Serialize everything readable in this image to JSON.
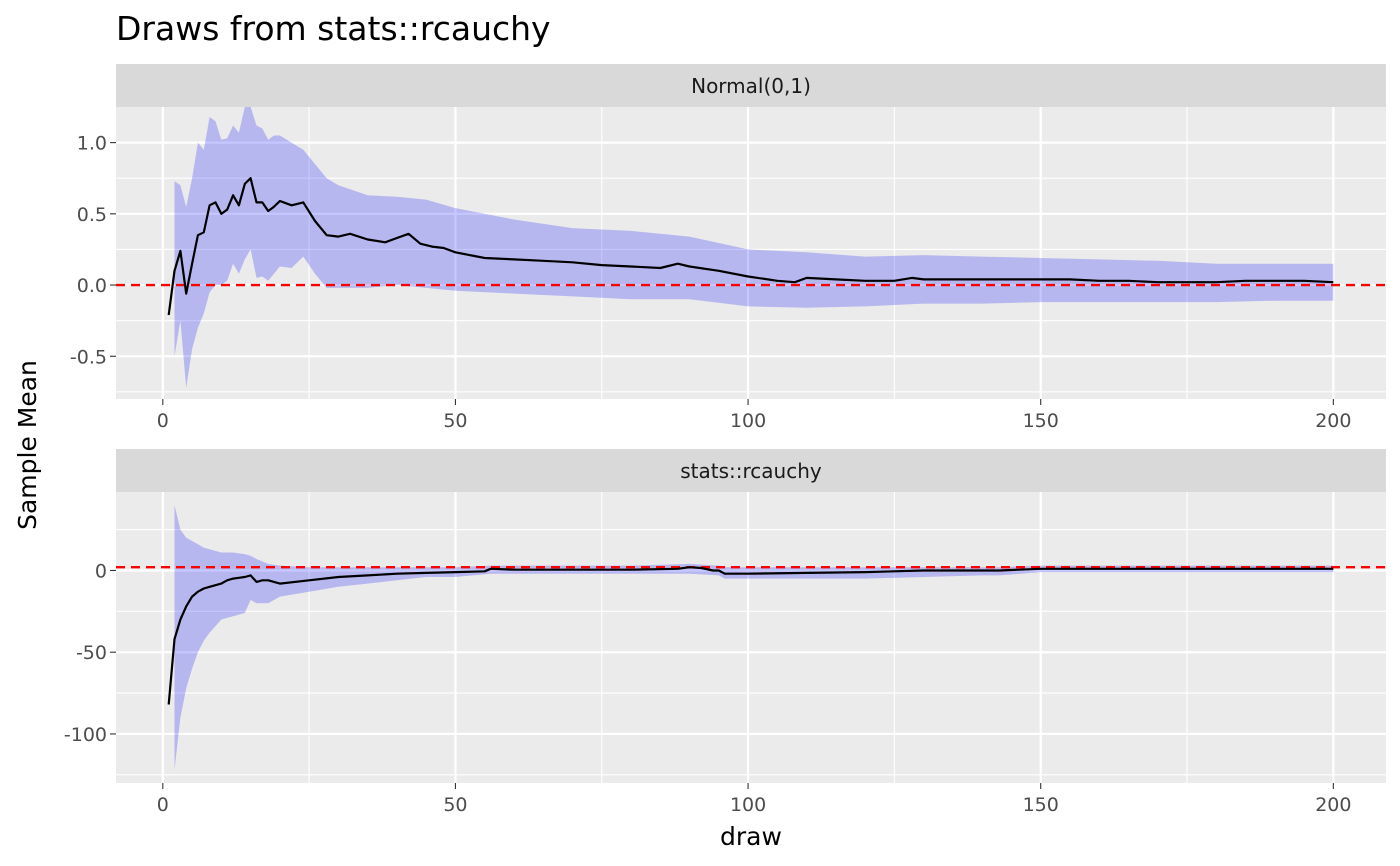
{
  "chart_data": {
    "type": "line",
    "title": "Draws from stats::rcauchy",
    "xlabel": "draw",
    "ylabel": "Sample Mean",
    "grid": true,
    "colors": {
      "ribbon": "#0000ff",
      "ribbon_opacity": 0.22,
      "line": "#000000",
      "reference_line": "#ff0000",
      "panel_background": "#ebebeb",
      "strip_background": "#d9d9d9"
    },
    "panels": [
      {
        "strip_label": "Normal(0,1)",
        "xlim": [
          -8,
          209
        ],
        "ylim": [
          -0.8,
          1.25
        ],
        "x_ticks": [
          0,
          50,
          100,
          150,
          200
        ],
        "y_ticks": [
          -0.5,
          0.0,
          0.5,
          1.0
        ],
        "y_tick_labels": [
          "-0.5",
          "0.0",
          "0.5",
          "1.0"
        ],
        "reference_y": 0.0,
        "series": [
          {
            "type": "line",
            "x": [
              1,
              2,
              3,
              4,
              5,
              6,
              7,
              8,
              9,
              10,
              11,
              12,
              13,
              14,
              15,
              16,
              17,
              18,
              19,
              20,
              22,
              24,
              26,
              28,
              30,
              32,
              35,
              38,
              40,
              42,
              44,
              46,
              48,
              50,
              55,
              60,
              65,
              70,
              75,
              80,
              85,
              88,
              90,
              95,
              100,
              105,
              108,
              110,
              115,
              120,
              125,
              128,
              130,
              135,
              140,
              145,
              150,
              155,
              160,
              165,
              170,
              175,
              180,
              185,
              190,
              195,
              200
            ],
            "y": [
              -0.21,
              0.1,
              0.24,
              -0.06,
              0.15,
              0.35,
              0.37,
              0.56,
              0.58,
              0.5,
              0.53,
              0.63,
              0.56,
              0.71,
              0.75,
              0.58,
              0.58,
              0.52,
              0.55,
              0.59,
              0.56,
              0.58,
              0.45,
              0.35,
              0.34,
              0.36,
              0.32,
              0.3,
              0.33,
              0.36,
              0.29,
              0.27,
              0.26,
              0.23,
              0.19,
              0.18,
              0.17,
              0.16,
              0.14,
              0.13,
              0.12,
              0.15,
              0.13,
              0.1,
              0.06,
              0.03,
              0.02,
              0.05,
              0.04,
              0.03,
              0.03,
              0.05,
              0.04,
              0.04,
              0.04,
              0.04,
              0.04,
              0.04,
              0.03,
              0.03,
              0.02,
              0.02,
              0.02,
              0.03,
              0.03,
              0.03,
              0.02
            ]
          },
          {
            "type": "ribbon",
            "x": [
              1,
              2,
              3,
              4,
              5,
              6,
              7,
              8,
              9,
              10,
              11,
              12,
              13,
              14,
              15,
              16,
              17,
              18,
              19,
              20,
              22,
              24,
              26,
              28,
              30,
              35,
              40,
              45,
              50,
              60,
              70,
              80,
              90,
              100,
              110,
              120,
              130,
              140,
              150,
              160,
              170,
              180,
              190,
              200
            ],
            "upper": [
              null,
              0.73,
              0.7,
              0.55,
              0.75,
              1.0,
              0.95,
              1.18,
              1.15,
              1.02,
              1.03,
              1.12,
              1.07,
              1.25,
              1.25,
              1.12,
              1.1,
              1.02,
              1.05,
              1.05,
              1.0,
              0.95,
              0.85,
              0.75,
              0.7,
              0.63,
              0.62,
              0.6,
              0.54,
              0.46,
              0.4,
              0.38,
              0.34,
              0.25,
              0.23,
              0.2,
              0.21,
              0.2,
              0.19,
              0.18,
              0.17,
              0.15,
              0.15,
              0.15
            ],
            "lower": [
              null,
              -0.5,
              -0.25,
              -0.72,
              -0.45,
              -0.3,
              -0.2,
              -0.05,
              0.0,
              0.0,
              0.03,
              0.15,
              0.08,
              0.18,
              0.25,
              0.05,
              0.06,
              0.03,
              0.08,
              0.13,
              0.12,
              0.2,
              0.08,
              -0.02,
              -0.02,
              -0.02,
              0.0,
              -0.02,
              -0.04,
              -0.06,
              -0.08,
              -0.1,
              -0.1,
              -0.15,
              -0.16,
              -0.15,
              -0.13,
              -0.13,
              -0.12,
              -0.12,
              -0.12,
              -0.12,
              -0.11,
              -0.11
            ]
          }
        ]
      },
      {
        "strip_label": "stats::rcauchy",
        "xlim": [
          -8,
          209
        ],
        "ylim": [
          -130,
          48
        ],
        "x_ticks": [
          0,
          50,
          100,
          150,
          200
        ],
        "y_ticks": [
          -100,
          -50,
          0
        ],
        "y_tick_labels": [
          "-100",
          "-50",
          "0"
        ],
        "reference_y": 2,
        "series": [
          {
            "type": "line",
            "x": [
              1,
              2,
              3,
              4,
              5,
              6,
              7,
              8,
              9,
              10,
              11,
              12,
              13,
              14,
              15,
              16,
              17,
              18,
              20,
              25,
              30,
              35,
              40,
              45,
              50,
              55,
              56,
              60,
              70,
              80,
              88,
              90,
              92,
              94,
              95,
              96,
              100,
              110,
              120,
              130,
              140,
              143,
              150,
              160,
              170,
              180,
              190,
              200
            ],
            "y": [
              -82,
              -42,
              -30,
              -22,
              -16,
              -13,
              -11,
              -10,
              -9,
              -8,
              -6,
              -5,
              -4.5,
              -4,
              -3,
              -7,
              -6,
              -6,
              -8,
              -6,
              -4,
              -3,
              -2,
              -1.5,
              -1,
              -0.5,
              1,
              0.5,
              0.5,
              0.5,
              1,
              2,
              1.5,
              0,
              0,
              -2,
              -2,
              -1.5,
              -1,
              0,
              0,
              0,
              1,
              1,
              1,
              1,
              1,
              1
            ]
          },
          {
            "type": "ribbon",
            "x": [
              1,
              2,
              3,
              4,
              5,
              6,
              7,
              8,
              9,
              10,
              12,
              14,
              15,
              16,
              18,
              20,
              25,
              30,
              35,
              40,
              45,
              50,
              56,
              60,
              70,
              80,
              90,
              95,
              96,
              100,
              110,
              120,
              130,
              140,
              143,
              150,
              160,
              170,
              180,
              190,
              200
            ],
            "upper": [
              null,
              40,
              25,
              20,
              18,
              16,
              14,
              13,
              12,
              11,
              11,
              10,
              9,
              7,
              4,
              3,
              2,
              2,
              2,
              2,
              2,
              2,
              3,
              3,
              3,
              3,
              4,
              3,
              2,
              2,
              2,
              2,
              2,
              2,
              2,
              3,
              3,
              3,
              3,
              3,
              3
            ],
            "lower": [
              null,
              -122,
              -90,
              -72,
              -60,
              -50,
              -43,
              -38,
              -34,
              -30,
              -28,
              -26,
              -18,
              -20,
              -20,
              -16,
              -13,
              -10,
              -8,
              -6,
              -4,
              -4,
              -2,
              -2,
              -2,
              -2,
              -2,
              -3,
              -5,
              -5,
              -5,
              -5,
              -4,
              -3,
              -3,
              -1,
              -1,
              -1,
              -1,
              -1,
              -1
            ]
          }
        ]
      }
    ]
  }
}
